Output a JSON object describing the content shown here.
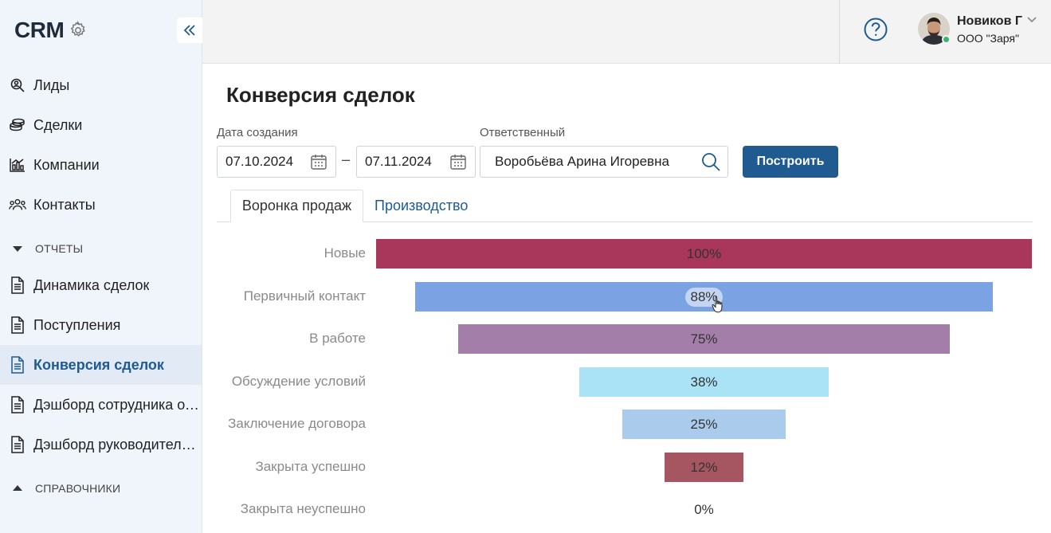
{
  "brand": {
    "title": "CRM"
  },
  "sidebar": {
    "items": [
      {
        "label": "Лиды",
        "icon": "search-person-icon"
      },
      {
        "label": "Сделки",
        "icon": "coins-icon"
      },
      {
        "label": "Компании",
        "icon": "chart-icon"
      },
      {
        "label": "Контакты",
        "icon": "people-icon"
      }
    ],
    "reports_section": "ОТЧЕТЫ",
    "reports": [
      {
        "label": "Динамика сделок"
      },
      {
        "label": "Поступления"
      },
      {
        "label": "Конверсия сделок",
        "active": true
      },
      {
        "label": "Дэшборд сотрудника отдела продаж"
      },
      {
        "label": "Дэшборд руководителя отдела продаж"
      }
    ],
    "refs_section": "СПРАВОЧНИКИ"
  },
  "header": {
    "user_name": "Новиков Г",
    "user_org": "ООО \"Заря\""
  },
  "page": {
    "title": "Конверсия сделок",
    "date_label": "Дата создания",
    "date_from": "07.10.2024",
    "date_sep": "–",
    "date_to": "07.11.2024",
    "responsible_label": "Ответственный",
    "responsible_value": "Воробьёва Арина Игоревна",
    "build_button": "Построить",
    "tabs": [
      {
        "label": "Воронка продаж",
        "active": true
      },
      {
        "label": "Производство",
        "active": false
      }
    ]
  },
  "chart_data": {
    "type": "bar",
    "categories": [
      "Новые",
      "Первичный контакт",
      "В работе",
      "Обсуждение условий",
      "Заключение договора",
      "Закрыта успешно",
      "Закрыта неуспешно"
    ],
    "values": [
      100,
      88,
      75,
      38,
      25,
      12,
      0
    ],
    "value_labels": [
      "100%",
      "88%",
      "75%",
      "38%",
      "25%",
      "12%",
      "0%"
    ],
    "colors": [
      "#a8375b",
      "#7ba3e4",
      "#a37ea8",
      "#aae3f6",
      "#aacbec",
      "#a65661",
      "#cccccc"
    ],
    "xlim": [
      0,
      100
    ]
  }
}
